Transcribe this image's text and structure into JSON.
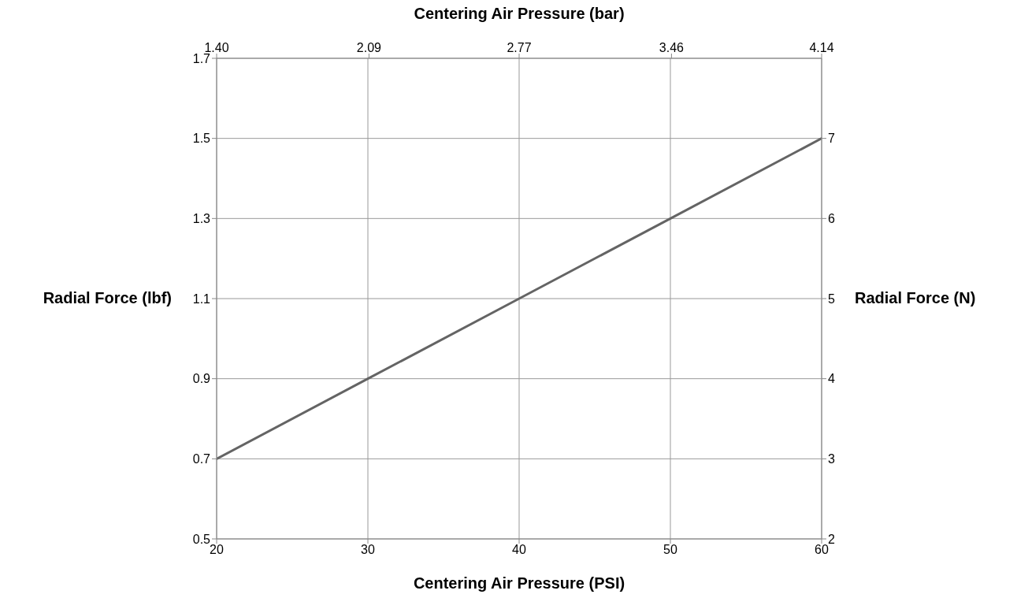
{
  "chart_data": {
    "type": "line",
    "xlabel": "Centering Air Pressure (PSI)",
    "x2label": "Centering Air Pressure (bar)",
    "ylabel": "Radial Force (lbf)",
    "y2label": "Radial Force (N)",
    "x": [
      20,
      30,
      40,
      50,
      60
    ],
    "series": [
      {
        "color": "#646464",
        "values": [
          0.7,
          0.9,
          1.1,
          1.3,
          1.5
        ]
      }
    ],
    "xlim": [
      20,
      60
    ],
    "xticks": [
      20,
      30,
      40,
      50,
      60
    ],
    "x2lim": [
      1.4,
      4.14
    ],
    "x2ticks": [
      {
        "value": 1.4,
        "label": "1.40"
      },
      2.09,
      2.77,
      3.46,
      4.14
    ],
    "ylim": [
      0.5,
      1.7
    ],
    "yticks": [
      0.5,
      0.7,
      0.9,
      1.1,
      1.3,
      1.5,
      1.7
    ],
    "y2lim": [
      2,
      8
    ],
    "y2ticks": [
      2,
      3,
      4,
      5,
      6,
      7
    ],
    "grid": true,
    "marker": "none",
    "line_style": "solid"
  }
}
